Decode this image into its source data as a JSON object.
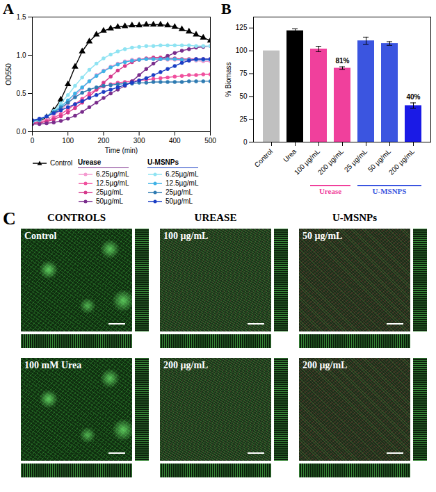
{
  "panels": [
    "A",
    "B",
    "C"
  ],
  "chart_data": [
    {
      "type": "line",
      "x_label": "Time (min)",
      "y_label": "OD550",
      "x": [
        0,
        20,
        40,
        60,
        80,
        100,
        120,
        140,
        160,
        180,
        200,
        220,
        240,
        260,
        280,
        300,
        320,
        340,
        360,
        380,
        400,
        420,
        440,
        460,
        480,
        500
      ],
      "xlim": [
        0,
        500
      ],
      "xticks": [
        0,
        100,
        200,
        300,
        400,
        500
      ],
      "ylim": [
        0,
        1.5
      ],
      "yticks": [
        {
          "value": 0,
          "label": "0.0"
        },
        {
          "value": 0.5,
          "label": "0.5"
        },
        {
          "value": 1,
          "label": "1.0"
        },
        {
          "value": 1.5,
          "label": "1.5"
        }
      ],
      "grid": false,
      "series": [
        {
          "name": "Control",
          "color": "#000000",
          "marker": "triangle",
          "values": [
            0.12,
            0.14,
            0.19,
            0.28,
            0.42,
            0.62,
            0.85,
            1.05,
            1.18,
            1.27,
            1.32,
            1.35,
            1.37,
            1.38,
            1.39,
            1.39,
            1.4,
            1.4,
            1.4,
            1.39,
            1.37,
            1.34,
            1.31,
            1.27,
            1.23,
            1.19
          ]
        },
        {
          "name": "6.25µg/mL",
          "group": "Urease",
          "color": "#f59ad0",
          "marker": "circle",
          "values": [
            0.12,
            0.13,
            0.16,
            0.21,
            0.28,
            0.37,
            0.47,
            0.57,
            0.66,
            0.74,
            0.8,
            0.85,
            0.89,
            0.92,
            0.94,
            0.95,
            0.95,
            0.95,
            0.95,
            0.94,
            0.94,
            0.93,
            0.93,
            0.93,
            0.92,
            0.92
          ]
        },
        {
          "name": "12.5µg/mL",
          "group": "Urease",
          "color": "#f0509e",
          "marker": "circle",
          "values": [
            0.11,
            0.12,
            0.14,
            0.18,
            0.23,
            0.29,
            0.36,
            0.43,
            0.5,
            0.55,
            0.59,
            0.62,
            0.64,
            0.65,
            0.66,
            0.67,
            0.68,
            0.69,
            0.7,
            0.71,
            0.72,
            0.73,
            0.74,
            0.74,
            0.75,
            0.75
          ]
        },
        {
          "name": "25µg/mL",
          "group": "Urease",
          "color": "#d6388c",
          "marker": "circle",
          "values": [
            0.11,
            0.12,
            0.13,
            0.16,
            0.2,
            0.25,
            0.31,
            0.38,
            0.46,
            0.55,
            0.64,
            0.72,
            0.8,
            0.86,
            0.91,
            0.94,
            0.96,
            0.97,
            0.97,
            0.96,
            0.96,
            0.95,
            0.95,
            0.95,
            0.95,
            0.95
          ]
        },
        {
          "name": "50µg/mL",
          "group": "Urease",
          "color": "#7a2d8c",
          "marker": "circle",
          "values": [
            0.1,
            0.1,
            0.11,
            0.12,
            0.14,
            0.17,
            0.21,
            0.26,
            0.32,
            0.38,
            0.44,
            0.5,
            0.55,
            0.6,
            0.66,
            0.74,
            0.82,
            0.89,
            0.95,
            0.99,
            1.03,
            1.06,
            1.08,
            1.1,
            1.11,
            1.12
          ]
        },
        {
          "name": "6.25µg/mL",
          "group": "U-MSNPs",
          "color": "#8fe3f2",
          "marker": "circle",
          "values": [
            0.13,
            0.15,
            0.2,
            0.27,
            0.37,
            0.48,
            0.6,
            0.71,
            0.81,
            0.89,
            0.96,
            1.01,
            1.05,
            1.08,
            1.1,
            1.11,
            1.12,
            1.12,
            1.13,
            1.13,
            1.13,
            1.13,
            1.13,
            1.12,
            1.12,
            1.12
          ]
        },
        {
          "name": "12.5µg/mL",
          "group": "U-MSNPs",
          "color": "#3fb2e6",
          "marker": "circle",
          "values": [
            0.14,
            0.16,
            0.2,
            0.26,
            0.33,
            0.41,
            0.5,
            0.58,
            0.66,
            0.73,
            0.79,
            0.84,
            0.88,
            0.91,
            0.93,
            0.94,
            0.95,
            0.95,
            0.95,
            0.95,
            0.95,
            0.94,
            0.94,
            0.94,
            0.94,
            0.94
          ]
        },
        {
          "name": "25µg/mL",
          "group": "U-MSNPs",
          "color": "#2f7bb2",
          "marker": "circle",
          "values": [
            0.14,
            0.16,
            0.2,
            0.25,
            0.31,
            0.38,
            0.45,
            0.51,
            0.55,
            0.58,
            0.6,
            0.61,
            0.62,
            0.63,
            0.63,
            0.64,
            0.64,
            0.65,
            0.65,
            0.65,
            0.65,
            0.65,
            0.66,
            0.66,
            0.66,
            0.66
          ]
        },
        {
          "name": "50µg/mL",
          "group": "U-MSNPs",
          "color": "#1c3fc4",
          "marker": "circle",
          "values": [
            0.15,
            0.17,
            0.2,
            0.24,
            0.28,
            0.32,
            0.36,
            0.4,
            0.44,
            0.48,
            0.52,
            0.55,
            0.58,
            0.61,
            0.64,
            0.67,
            0.7,
            0.74,
            0.78,
            0.82,
            0.86,
            0.9,
            0.93,
            0.95,
            0.95,
            0.95
          ]
        }
      ]
    },
    {
      "type": "bar",
      "y_label": "% Biomass",
      "categories": [
        "Control",
        "Urea",
        "100 µg/mL",
        "200 µg/mL",
        "25 µg/mL",
        "50 µg/mL",
        "200 µg/mL"
      ],
      "values": [
        100,
        122,
        102,
        81,
        111,
        108,
        40
      ],
      "errors": [
        0,
        2,
        3,
        1.5,
        4,
        2,
        3
      ],
      "colors": [
        "#c0c0c0",
        "#000000",
        "#f0409c",
        "#f0409c",
        "#3b55e0",
        "#3b55e0",
        "#1a1ae6"
      ],
      "data_labels": true,
      "value_labels": [
        null,
        null,
        null,
        "81%",
        null,
        null,
        "40%"
      ],
      "ylim": [
        0,
        137
      ],
      "yticks": [
        0,
        25,
        50,
        75,
        100,
        125
      ],
      "grid": false,
      "groups": [
        {
          "label": "Urease",
          "from": 2,
          "to": 3,
          "color": "#f0409c"
        },
        {
          "label": "U-MSNPS",
          "from": 4,
          "to": 6,
          "color": "#3b55e0"
        }
      ]
    }
  ],
  "images": {
    "columns": [
      {
        "title": "CONTROLS",
        "cells": [
          "Control",
          "100 mM Urea"
        ]
      },
      {
        "title": "UREASE",
        "cells": [
          "100 µg/mL",
          "200 µg/mL"
        ]
      },
      {
        "title": "U-MSNPs",
        "cells": [
          "50 µg/mL",
          "200 µg/mL"
        ]
      }
    ]
  }
}
